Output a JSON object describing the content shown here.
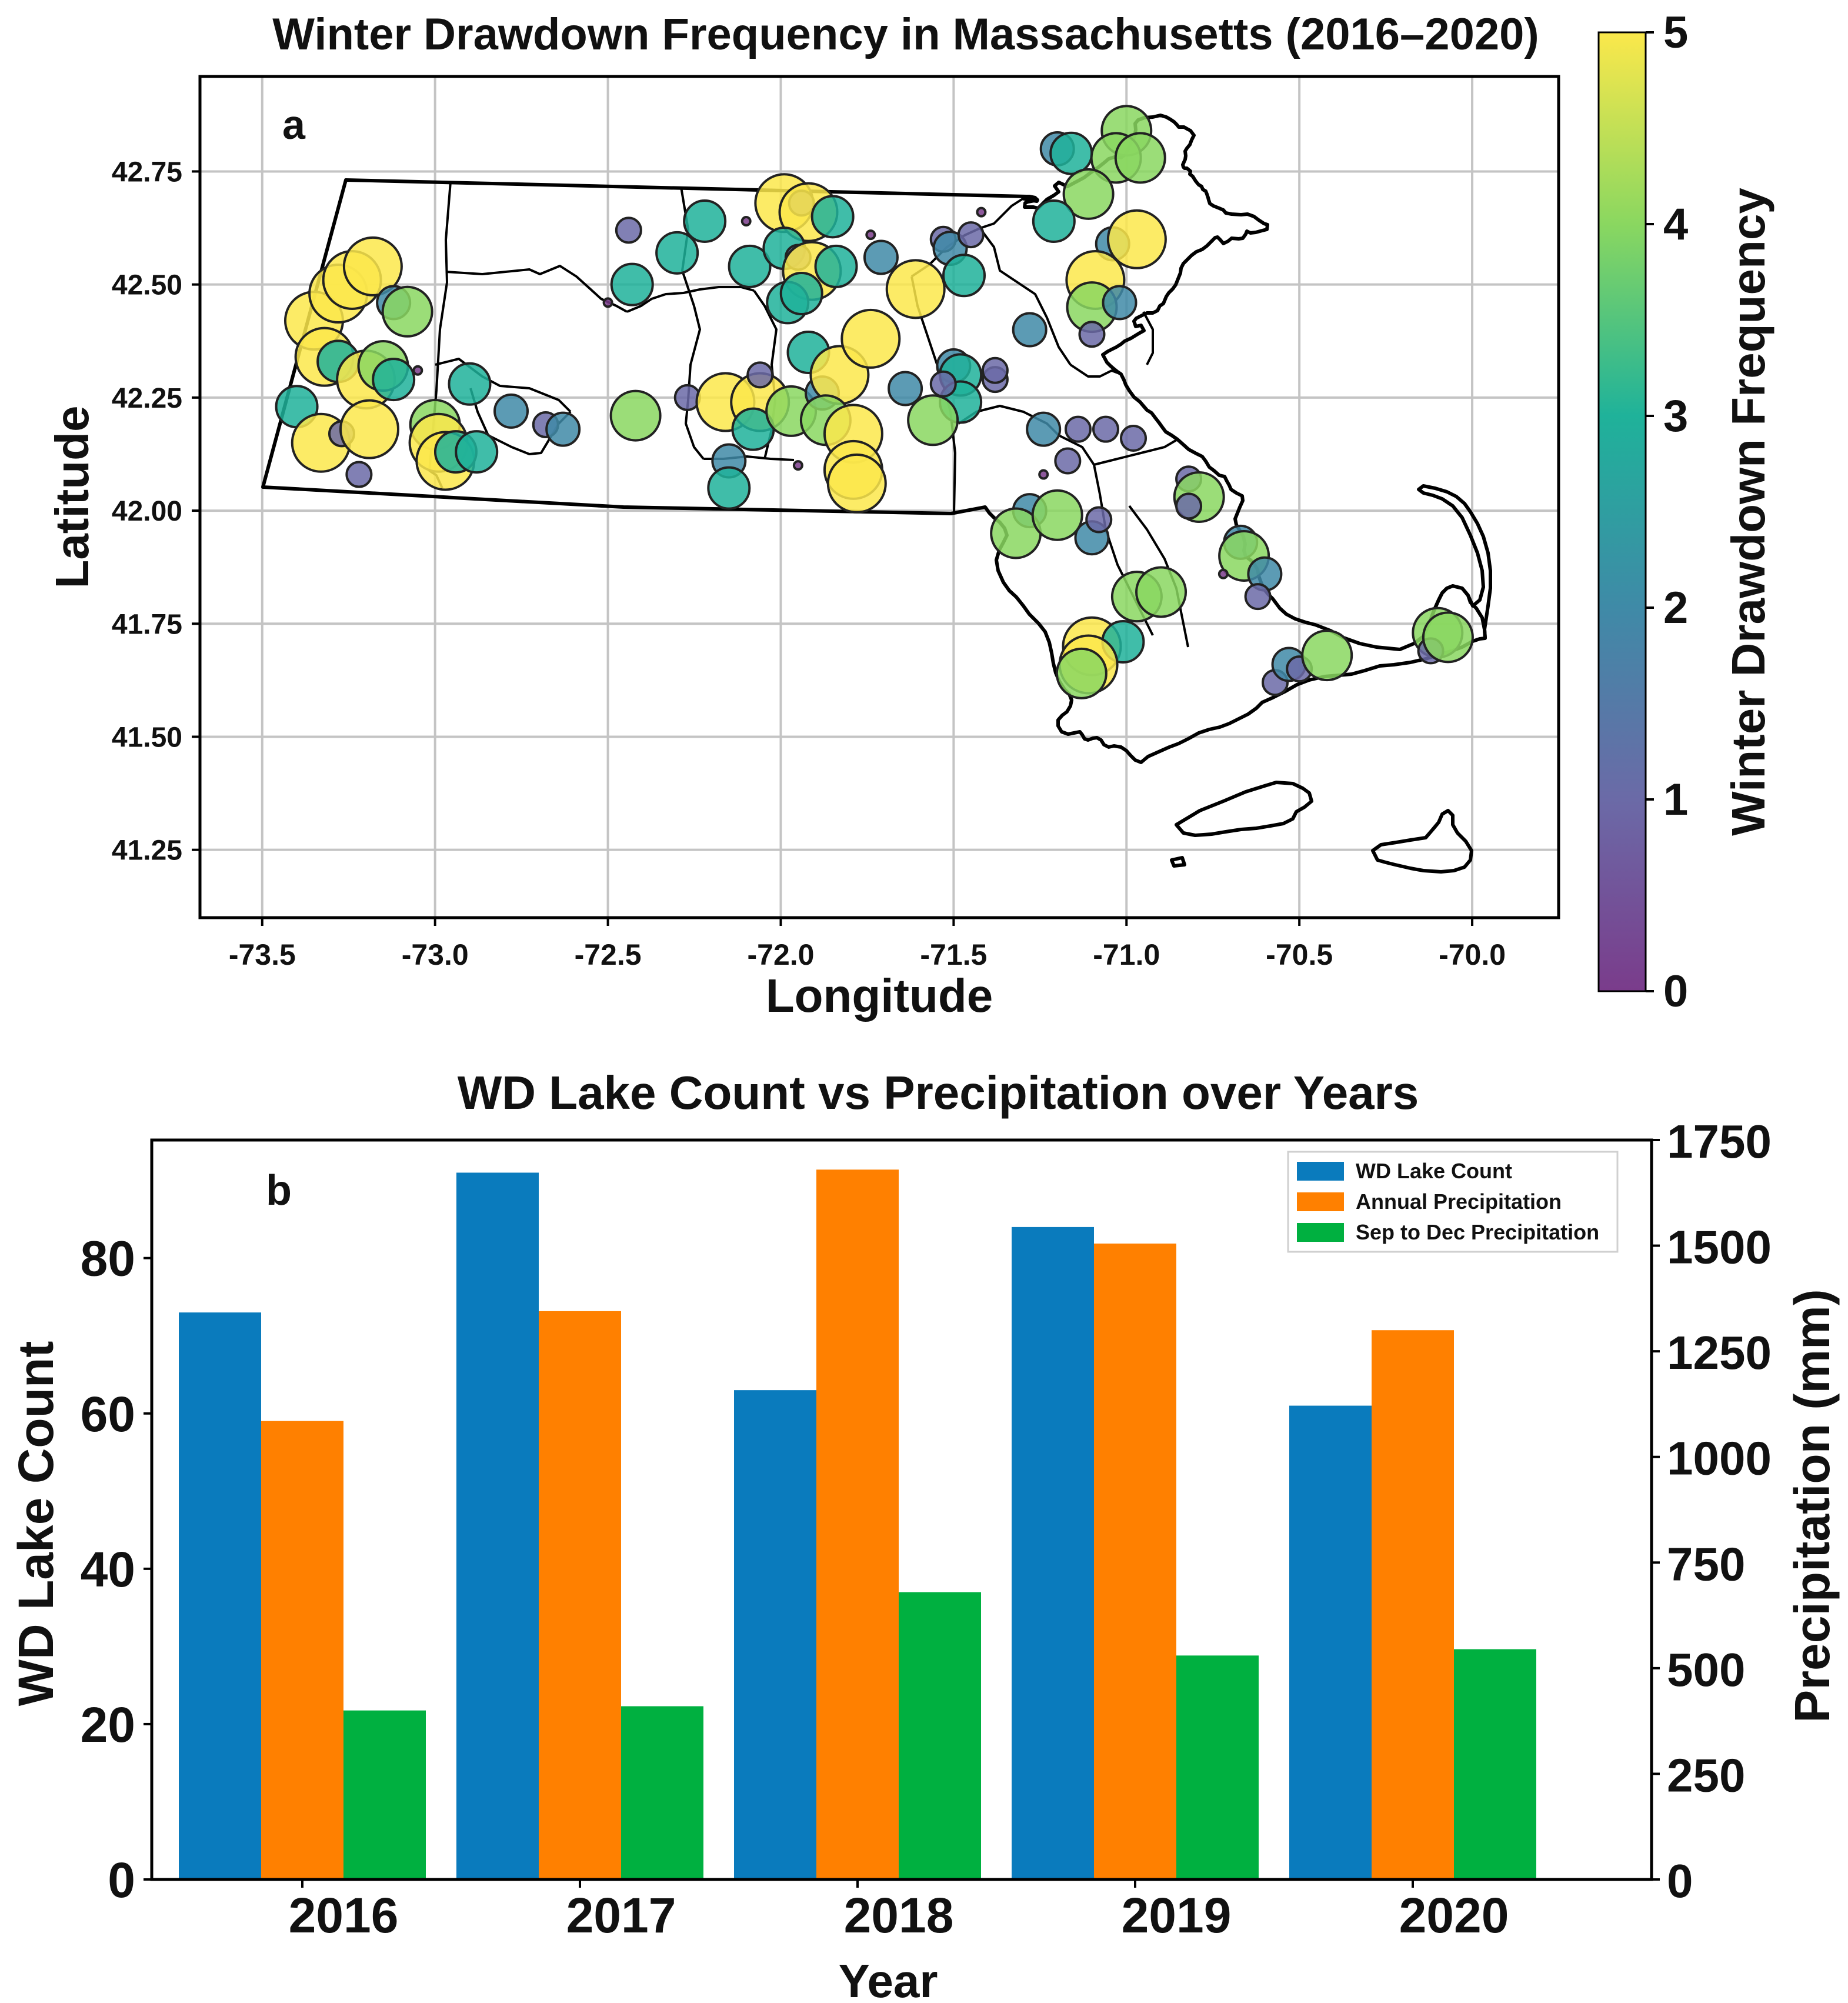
{
  "chart_data": [
    {
      "type": "scatter",
      "panel_label": "a",
      "title": "Winter Drawdown Frequency in Massachusetts (2016–2020)",
      "xlabel": "Longitude",
      "ylabel": "Latitude",
      "xlim": [
        -73.68,
        -69.75
      ],
      "ylim": [
        41.1,
        42.96
      ],
      "xticks": [
        "-73.5",
        "-73.0",
        "-72.5",
        "-72.0",
        "-71.5",
        "-71.0",
        "-70.5",
        "-70.0"
      ],
      "xtick_values": [
        -73.5,
        -73.0,
        -72.5,
        -72.0,
        -71.5,
        -71.0,
        -70.5,
        -70.0
      ],
      "yticks": [
        "41.25",
        "41.50",
        "41.75",
        "42.00",
        "42.25",
        "42.50",
        "42.75"
      ],
      "ytick_values": [
        41.25,
        41.5,
        41.75,
        42.0,
        42.25,
        42.5,
        42.75
      ],
      "grid": true,
      "colorbar": {
        "label": "Winter Drawdown Frequency",
        "min": 0,
        "max": 5,
        "ticks": [
          "0",
          "1",
          "2",
          "3",
          "4",
          "5"
        ],
        "colormap": "viridis"
      },
      "points": [
        {
          "lon": -73.35,
          "lat": 42.42,
          "freq": 5
        },
        {
          "lon": -73.32,
          "lat": 42.34,
          "freq": 5
        },
        {
          "lon": -73.28,
          "lat": 42.48,
          "freq": 5
        },
        {
          "lon": -73.24,
          "lat": 42.51,
          "freq": 5
        },
        {
          "lon": -73.18,
          "lat": 42.54,
          "freq": 5
        },
        {
          "lon": -73.4,
          "lat": 42.23,
          "freq": 3
        },
        {
          "lon": -73.28,
          "lat": 42.33,
          "freq": 3
        },
        {
          "lon": -73.2,
          "lat": 42.29,
          "freq": 5
        },
        {
          "lon": -73.15,
          "lat": 42.32,
          "freq": 4
        },
        {
          "lon": -73.12,
          "lat": 42.29,
          "freq": 3
        },
        {
          "lon": -73.12,
          "lat": 42.46,
          "freq": 2
        },
        {
          "lon": -73.08,
          "lat": 42.44,
          "freq": 4
        },
        {
          "lon": -73.05,
          "lat": 42.31,
          "freq": 0
        },
        {
          "lon": -73.33,
          "lat": 42.15,
          "freq": 5
        },
        {
          "lon": -73.27,
          "lat": 42.17,
          "freq": 1
        },
        {
          "lon": -73.19,
          "lat": 42.18,
          "freq": 5
        },
        {
          "lon": -73.22,
          "lat": 42.08,
          "freq": 1
        },
        {
          "lon": -73.0,
          "lat": 42.19,
          "freq": 4
        },
        {
          "lon": -72.99,
          "lat": 42.15,
          "freq": 5
        },
        {
          "lon": -72.97,
          "lat": 42.11,
          "freq": 5
        },
        {
          "lon": -72.94,
          "lat": 42.13,
          "freq": 3
        },
        {
          "lon": -72.88,
          "lat": 42.13,
          "freq": 3
        },
        {
          "lon": -72.9,
          "lat": 42.28,
          "freq": 3
        },
        {
          "lon": -72.78,
          "lat": 42.22,
          "freq": 2
        },
        {
          "lon": -72.68,
          "lat": 42.19,
          "freq": 1
        },
        {
          "lon": -72.63,
          "lat": 42.18,
          "freq": 2
        },
        {
          "lon": -72.42,
          "lat": 42.21,
          "freq": 4
        },
        {
          "lon": -72.5,
          "lat": 42.46,
          "freq": 0
        },
        {
          "lon": -72.44,
          "lat": 42.62,
          "freq": 1
        },
        {
          "lon": -72.43,
          "lat": 42.5,
          "freq": 3
        },
        {
          "lon": -72.3,
          "lat": 42.57,
          "freq": 3
        },
        {
          "lon": -72.22,
          "lat": 42.64,
          "freq": 3
        },
        {
          "lon": -72.1,
          "lat": 42.64,
          "freq": 0
        },
        {
          "lon": -72.27,
          "lat": 42.25,
          "freq": 1
        },
        {
          "lon": -72.16,
          "lat": 42.24,
          "freq": 5
        },
        {
          "lon": -72.06,
          "lat": 42.24,
          "freq": 5
        },
        {
          "lon": -72.06,
          "lat": 42.3,
          "freq": 1
        },
        {
          "lon": -72.08,
          "lat": 42.18,
          "freq": 3
        },
        {
          "lon": -72.15,
          "lat": 42.11,
          "freq": 2
        },
        {
          "lon": -72.15,
          "lat": 42.05,
          "freq": 3
        },
        {
          "lon": -72.09,
          "lat": 42.54,
          "freq": 3
        },
        {
          "lon": -71.99,
          "lat": 42.68,
          "freq": 5
        },
        {
          "lon": -71.94,
          "lat": 42.68,
          "freq": 1
        },
        {
          "lon": -71.92,
          "lat": 42.66,
          "freq": 5
        },
        {
          "lon": -71.85,
          "lat": 42.65,
          "freq": 3
        },
        {
          "lon": -71.99,
          "lat": 42.58,
          "freq": 3
        },
        {
          "lon": -71.95,
          "lat": 42.56,
          "freq": 1
        },
        {
          "lon": -71.91,
          "lat": 42.53,
          "freq": 5
        },
        {
          "lon": -71.84,
          "lat": 42.54,
          "freq": 3
        },
        {
          "lon": -71.98,
          "lat": 42.46,
          "freq": 3
        },
        {
          "lon": -71.94,
          "lat": 42.48,
          "freq": 3
        },
        {
          "lon": -71.92,
          "lat": 42.35,
          "freq": 3
        },
        {
          "lon": -71.97,
          "lat": 42.22,
          "freq": 4
        },
        {
          "lon": -71.88,
          "lat": 42.26,
          "freq": 2
        },
        {
          "lon": -71.83,
          "lat": 42.3,
          "freq": 5
        },
        {
          "lon": -71.87,
          "lat": 42.2,
          "freq": 4
        },
        {
          "lon": -71.95,
          "lat": 42.1,
          "freq": 0
        },
        {
          "lon": -71.79,
          "lat": 42.17,
          "freq": 5
        },
        {
          "lon": -71.79,
          "lat": 42.09,
          "freq": 5
        },
        {
          "lon": -71.78,
          "lat": 42.06,
          "freq": 5
        },
        {
          "lon": -71.74,
          "lat": 42.38,
          "freq": 5
        },
        {
          "lon": -71.74,
          "lat": 42.61,
          "freq": 0
        },
        {
          "lon": -71.71,
          "lat": 42.56,
          "freq": 2
        },
        {
          "lon": -71.64,
          "lat": 42.27,
          "freq": 2
        },
        {
          "lon": -71.61,
          "lat": 42.49,
          "freq": 5
        },
        {
          "lon": -71.53,
          "lat": 42.6,
          "freq": 1
        },
        {
          "lon": -71.51,
          "lat": 42.58,
          "freq": 2
        },
        {
          "lon": -71.47,
          "lat": 42.52,
          "freq": 3
        },
        {
          "lon": -71.45,
          "lat": 42.61,
          "freq": 1
        },
        {
          "lon": -71.42,
          "lat": 42.66,
          "freq": 0
        },
        {
          "lon": -71.5,
          "lat": 42.32,
          "freq": 2
        },
        {
          "lon": -71.48,
          "lat": 42.3,
          "freq": 3
        },
        {
          "lon": -71.48,
          "lat": 42.24,
          "freq": 3
        },
        {
          "lon": -71.53,
          "lat": 42.28,
          "freq": 1
        },
        {
          "lon": -71.56,
          "lat": 42.2,
          "freq": 4
        },
        {
          "lon": -71.38,
          "lat": 42.29,
          "freq": 1
        },
        {
          "lon": -71.38,
          "lat": 42.31,
          "freq": 1
        },
        {
          "lon": -71.28,
          "lat": 42.4,
          "freq": 2
        },
        {
          "lon": -71.24,
          "lat": 42.18,
          "freq": 2
        },
        {
          "lon": -71.14,
          "lat": 42.18,
          "freq": 1
        },
        {
          "lon": -71.17,
          "lat": 42.11,
          "freq": 1
        },
        {
          "lon": -71.24,
          "lat": 42.08,
          "freq": 0
        },
        {
          "lon": -71.06,
          "lat": 42.18,
          "freq": 1
        },
        {
          "lon": -70.98,
          "lat": 42.16,
          "freq": 1
        },
        {
          "lon": -71.28,
          "lat": 42.0,
          "freq": 2
        },
        {
          "lon": -71.32,
          "lat": 41.95,
          "freq": 4
        },
        {
          "lon": -71.2,
          "lat": 41.99,
          "freq": 4
        },
        {
          "lon": -71.1,
          "lat": 41.94,
          "freq": 2
        },
        {
          "lon": -71.08,
          "lat": 41.98,
          "freq": 1
        },
        {
          "lon": -71.2,
          "lat": 42.8,
          "freq": 2
        },
        {
          "lon": -71.16,
          "lat": 42.79,
          "freq": 3
        },
        {
          "lon": -71.0,
          "lat": 42.84,
          "freq": 4
        },
        {
          "lon": -71.03,
          "lat": 42.78,
          "freq": 4
        },
        {
          "lon": -70.96,
          "lat": 42.78,
          "freq": 4
        },
        {
          "lon": -71.11,
          "lat": 42.7,
          "freq": 4
        },
        {
          "lon": -71.21,
          "lat": 42.64,
          "freq": 3
        },
        {
          "lon": -71.04,
          "lat": 42.59,
          "freq": 2
        },
        {
          "lon": -70.97,
          "lat": 42.6,
          "freq": 5
        },
        {
          "lon": -71.09,
          "lat": 42.51,
          "freq": 5
        },
        {
          "lon": -71.1,
          "lat": 42.45,
          "freq": 4
        },
        {
          "lon": -71.02,
          "lat": 42.46,
          "freq": 2
        },
        {
          "lon": -71.1,
          "lat": 42.39,
          "freq": 1
        },
        {
          "lon": -70.82,
          "lat": 42.07,
          "freq": 1
        },
        {
          "lon": -70.79,
          "lat": 42.03,
          "freq": 4
        },
        {
          "lon": -70.82,
          "lat": 42.01,
          "freq": 1
        },
        {
          "lon": -70.67,
          "lat": 41.93,
          "freq": 2
        },
        {
          "lon": -70.66,
          "lat": 41.9,
          "freq": 4
        },
        {
          "lon": -70.72,
          "lat": 41.86,
          "freq": 0
        },
        {
          "lon": -70.6,
          "lat": 41.86,
          "freq": 2
        },
        {
          "lon": -70.62,
          "lat": 41.81,
          "freq": 1
        },
        {
          "lon": -70.97,
          "lat": 41.81,
          "freq": 4
        },
        {
          "lon": -70.9,
          "lat": 41.82,
          "freq": 4
        },
        {
          "lon": -71.1,
          "lat": 41.7,
          "freq": 5
        },
        {
          "lon": -71.01,
          "lat": 41.71,
          "freq": 3
        },
        {
          "lon": -71.11,
          "lat": 41.66,
          "freq": 5
        },
        {
          "lon": -71.13,
          "lat": 41.64,
          "freq": 4
        },
        {
          "lon": -70.57,
          "lat": 41.62,
          "freq": 1
        },
        {
          "lon": -70.53,
          "lat": 41.66,
          "freq": 2
        },
        {
          "lon": -70.5,
          "lat": 41.65,
          "freq": 1
        },
        {
          "lon": -70.42,
          "lat": 41.68,
          "freq": 4
        },
        {
          "lon": -70.1,
          "lat": 41.73,
          "freq": 4
        },
        {
          "lon": -70.12,
          "lat": 41.69,
          "freq": 1
        },
        {
          "lon": -70.07,
          "lat": 41.72,
          "freq": 4
        }
      ]
    },
    {
      "type": "bar",
      "panel_label": "b",
      "title": "WD Lake Count vs Precipitation over Years",
      "xlabel": "Year",
      "ylabel": "WD Lake Count",
      "ylabel_right": "Precipitation (mm)",
      "categories": [
        "2016",
        "2017",
        "2018",
        "2019",
        "2020"
      ],
      "ylim": [
        0,
        95.2
      ],
      "ylim_right": [
        0,
        1750
      ],
      "yticks": [
        "0",
        "20",
        "40",
        "60",
        "80"
      ],
      "yticks_right": [
        "0",
        "250",
        "500",
        "750",
        "1000",
        "1250",
        "1500",
        "1750"
      ],
      "series": [
        {
          "name": "WD Lake Count",
          "axis": "left",
          "color": "#0a7bbd",
          "values": [
            73,
            91,
            63,
            84,
            61
          ]
        },
        {
          "name": "Annual Precipitation",
          "axis": "right",
          "color": "#ff8000",
          "values": [
            1085,
            1345,
            1680,
            1505,
            1300
          ]
        },
        {
          "name": "Sep to Dec Precipitation",
          "axis": "right",
          "color": "#00b040",
          "values": [
            400,
            410,
            680,
            530,
            545
          ]
        }
      ],
      "legend_position": "top-right"
    }
  ]
}
